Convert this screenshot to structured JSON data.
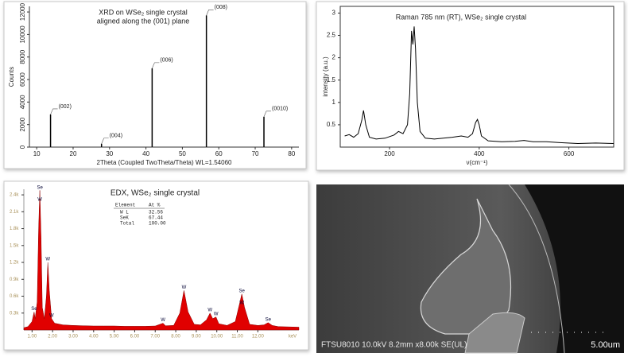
{
  "chart_data": [
    {
      "type": "stem",
      "title": [
        "XRD on WSe₂ single crystal",
        "aligned along the (001) plane"
      ],
      "x_label": "2Theta (Coupled TwoTheta/Theta) WL=1.54060",
      "y_label": "Counts",
      "x": [
        13.8,
        27.8,
        41.7,
        56.6,
        72.4
      ],
      "values": [
        2900,
        300,
        7000,
        11700,
        2700
      ],
      "peak_labels": [
        "(002)",
        "(004)",
        "(006)",
        "(008)",
        "(0010)"
      ],
      "color": "#000000",
      "xlim": [
        8,
        82
      ],
      "xticks": [
        10,
        20,
        30,
        40,
        50,
        60,
        70,
        80
      ],
      "ylim": [
        0,
        12500
      ],
      "yticks": [
        0,
        2000,
        4000,
        6000,
        8000,
        10000,
        12000
      ]
    },
    {
      "type": "line",
      "title": [
        "Raman 785 nm (RT), WSe₂ single crystal"
      ],
      "x_label": "ν(cm⁻¹)",
      "y_label": "intensity (a.u.)",
      "x": [
        100,
        110,
        120,
        130,
        138,
        142,
        147,
        155,
        170,
        190,
        210,
        220,
        230,
        240,
        245,
        249,
        252,
        255,
        258,
        262,
        268,
        280,
        300,
        320,
        340,
        360,
        375,
        385,
        392,
        396,
        400,
        405,
        420,
        450,
        480,
        500,
        520,
        550,
        580,
        620,
        660,
        700
      ],
      "values": [
        0.25,
        0.28,
        0.22,
        0.3,
        0.6,
        0.82,
        0.5,
        0.22,
        0.18,
        0.2,
        0.27,
        0.35,
        0.3,
        0.5,
        1.2,
        2.6,
        2.3,
        2.7,
        2.2,
        1.0,
        0.35,
        0.2,
        0.18,
        0.2,
        0.22,
        0.25,
        0.22,
        0.3,
        0.55,
        0.62,
        0.5,
        0.25,
        0.14,
        0.12,
        0.13,
        0.15,
        0.12,
        0.12,
        0.1,
        0.08,
        0.09,
        0.08
      ],
      "color": "#000000",
      "xlim": [
        90,
        700
      ],
      "xticks": [
        200,
        400,
        600
      ],
      "ylim": [
        0,
        3.15
      ],
      "yticks": [
        0.5,
        1,
        1.5,
        2,
        2.5,
        3
      ]
    },
    {
      "type": "area",
      "title": [
        "EDX, WSe₂ single crystal"
      ],
      "x_label": "keV",
      "x": [
        0.6,
        0.8,
        1.0,
        1.1,
        1.15,
        1.25,
        1.32,
        1.38,
        1.44,
        1.5,
        1.6,
        1.7,
        1.77,
        1.84,
        1.95,
        2.1,
        2.5,
        3.0,
        3.5,
        4.0,
        4.5,
        5.0,
        5.5,
        6.0,
        6.5,
        7.0,
        7.38,
        7.5,
        7.9,
        8.2,
        8.4,
        8.6,
        8.9,
        9.2,
        9.5,
        9.67,
        9.8,
        9.96,
        10.1,
        10.5,
        10.9,
        11.1,
        11.22,
        11.35,
        11.6,
        12.0,
        12.3,
        12.5,
        12.7,
        13.0,
        13.5,
        14.0
      ],
      "values": [
        40,
        60,
        150,
        320,
        200,
        500,
        1800,
        2480,
        1600,
        400,
        200,
        600,
        1200,
        700,
        200,
        120,
        90,
        80,
        75,
        70,
        70,
        70,
        65,
        65,
        65,
        70,
        120,
        75,
        80,
        300,
        700,
        320,
        100,
        90,
        180,
        300,
        200,
        230,
        110,
        80,
        150,
        450,
        640,
        400,
        100,
        80,
        90,
        130,
        80,
        60,
        55,
        50
      ],
      "color": "#e00000",
      "peak_labels": [
        {
          "label": "Se",
          "x": 1.1
        },
        {
          "label": "Se",
          "x": 1.38
        },
        {
          "label": "W",
          "x": 1.38
        },
        {
          "label": "W",
          "x": 1.77
        },
        {
          "label": "W",
          "x": 1.95
        },
        {
          "label": "W",
          "x": 7.38
        },
        {
          "label": "W",
          "x": 8.4
        },
        {
          "label": "W",
          "x": 9.67
        },
        {
          "label": "W",
          "x": 9.96
        },
        {
          "label": "Se",
          "x": 11.22
        },
        {
          "label": "W",
          "x": 11.22
        },
        {
          "label": "Se",
          "x": 12.5
        }
      ],
      "table": {
        "header": [
          "Element",
          "At %"
        ],
        "rows": [
          [
            "W L",
            "32.56"
          ],
          [
            "SeK",
            "67.44"
          ],
          [
            "Total",
            "100.00"
          ]
        ]
      },
      "xlim": [
        0.6,
        14
      ],
      "xticks": [
        {
          "value": 1,
          "label": "1.00"
        },
        {
          "value": 2,
          "label": "2.00"
        },
        {
          "value": 3,
          "label": "3.00"
        },
        {
          "value": 4,
          "label": "4.00"
        },
        {
          "value": 5,
          "label": "5.00"
        },
        {
          "value": 6,
          "label": "6.00"
        },
        {
          "value": 7,
          "label": "7.00"
        },
        {
          "value": 8,
          "label": "8.00"
        },
        {
          "value": 9,
          "label": "9.00"
        },
        {
          "value": 10,
          "label": "10.00"
        },
        {
          "value": 11,
          "label": "11.00"
        },
        {
          "value": 12,
          "label": "12.00"
        }
      ],
      "ylim": [
        0,
        2500
      ],
      "yticks": [
        {
          "value": 300,
          "label": "0.3k"
        },
        {
          "value": 600,
          "label": "0.6k"
        },
        {
          "value": 900,
          "label": "0.9k"
        },
        {
          "value": 1200,
          "label": "1.2k"
        },
        {
          "value": 1500,
          "label": "1.5k"
        },
        {
          "value": 1800,
          "label": "1.8k"
        },
        {
          "value": 2100,
          "label": "2.1k"
        },
        {
          "value": 2400,
          "label": "2.4k"
        }
      ]
    }
  ],
  "sem": {
    "info": "FTSU8010 10.0kV 8.2mm x8.00k SE(UL)",
    "scale": "5.00um"
  }
}
